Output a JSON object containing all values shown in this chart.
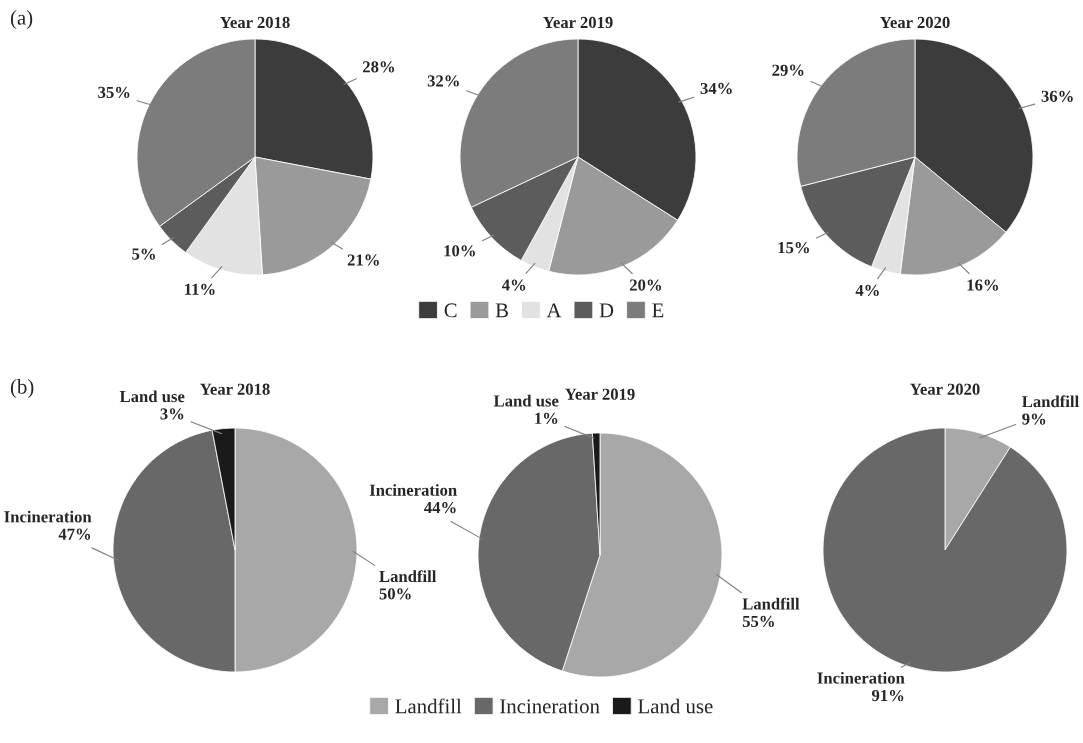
{
  "chart_data": [
    {
      "type": "pie",
      "title": "Year 2018",
      "annotations": [
        "(a)"
      ],
      "values": [
        28,
        21,
        11,
        5,
        35
      ],
      "value_labels": [
        "28%",
        "21%",
        "11%",
        "5%",
        "35%"
      ],
      "colors": [
        "#3c3c3c",
        "#9a9a9a",
        "#e2e2e2",
        "#5c5c5c",
        "#7c7c7c"
      ]
    },
    {
      "type": "pie",
      "title": "Year 2019",
      "categories": [
        "C",
        "B",
        "A",
        "D",
        "E"
      ],
      "legend": "bottom",
      "values": [
        34,
        20,
        4,
        10,
        32
      ],
      "value_labels": [
        "34%",
        "20%",
        "4%",
        "10%",
        "32%"
      ],
      "colors": [
        "#3c3c3c",
        "#9a9a9a",
        "#e2e2e2",
        "#5c5c5c",
        "#7c7c7c"
      ]
    },
    {
      "type": "pie",
      "title": "Year 2020",
      "values": [
        36,
        16,
        4,
        15,
        29
      ],
      "value_labels": [
        "36%",
        "16%",
        "4%",
        "15%",
        "29%"
      ],
      "colors": [
        "#3c3c3c",
        "#9a9a9a",
        "#e2e2e2",
        "#5c5c5c",
        "#7c7c7c"
      ]
    },
    {
      "type": "pie",
      "title": "Year 2018",
      "annotations": [
        "(b)"
      ],
      "values": [
        50,
        47,
        3
      ],
      "value_labels": [
        "Landfill\n50%",
        "Incineration\n47%",
        "Land use\n3%"
      ],
      "colors": [
        "#a8a8a8",
        "#686868",
        "#1a1a1a"
      ]
    },
    {
      "type": "pie",
      "title": "Year 2019",
      "categories": [
        "Landfill",
        "Incineration",
        "Land use"
      ],
      "legend": "bottom",
      "values": [
        55,
        44,
        1
      ],
      "value_labels": [
        "Landfill\n55%",
        "Incineration\n44%",
        "Land use\n1%"
      ],
      "colors": [
        "#a8a8a8",
        "#686868",
        "#1a1a1a"
      ]
    },
    {
      "type": "pie",
      "title": "Year 2020",
      "values": [
        9,
        91
      ],
      "value_labels": [
        "Landfill\n9%",
        "Incineration\n91%"
      ],
      "colors": [
        "#a8a8a8",
        "#686868"
      ]
    }
  ]
}
